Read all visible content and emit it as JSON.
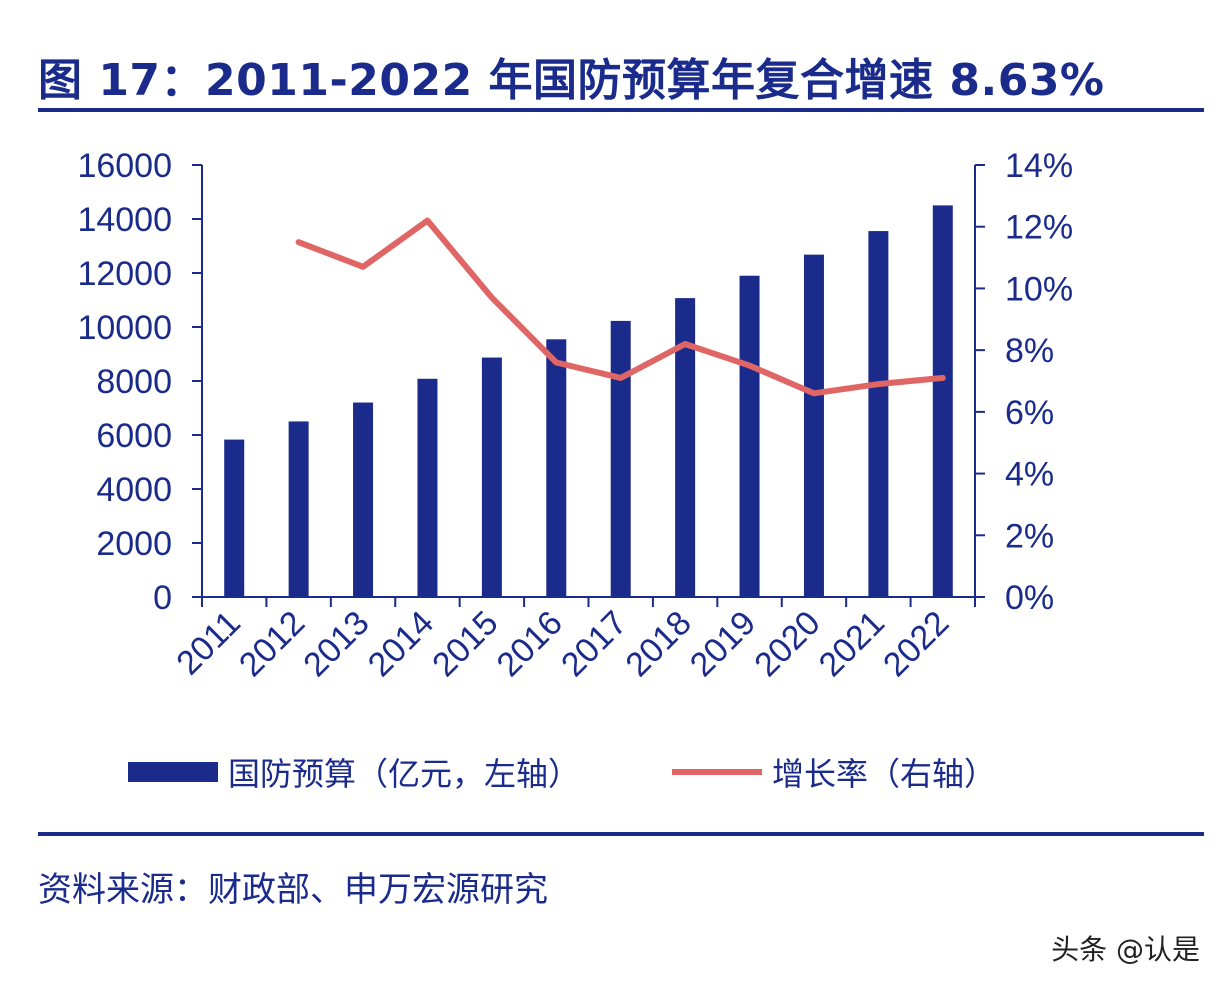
{
  "title": "图 17：2011-2022 年国防预算年复合增速 8.63%",
  "source": "资料来源：财政部、申万宏源研究",
  "watermark": "头条 @认是",
  "colors": {
    "primary": "#1a2b8c",
    "line": "#e06666"
  },
  "chart_data": {
    "type": "bar+line",
    "categories": [
      "2011",
      "2012",
      "2013",
      "2014",
      "2015",
      "2016",
      "2017",
      "2018",
      "2019",
      "2020",
      "2021",
      "2022"
    ],
    "series": [
      {
        "name": "国防预算（亿元，左轴）",
        "type": "bar",
        "axis": "left",
        "values": [
          5830,
          6503,
          7202,
          8082,
          8869,
          9544,
          10226,
          11070,
          11899,
          12680,
          13553,
          14504
        ]
      },
      {
        "name": "增长率（右轴）",
        "type": "line",
        "axis": "right",
        "start_index": 1,
        "values": [
          null,
          11.5,
          10.7,
          12.2,
          9.7,
          7.6,
          7.1,
          8.2,
          7.5,
          6.6,
          6.9,
          7.1
        ]
      }
    ],
    "left_axis": {
      "min": 0,
      "max": 16000,
      "ticks": [
        "0",
        "2000",
        "4000",
        "6000",
        "8000",
        "10000",
        "12000",
        "14000",
        "16000"
      ]
    },
    "right_axis": {
      "min": 0,
      "max": 14,
      "ticks": [
        "0%",
        "2%",
        "4%",
        "6%",
        "8%",
        "10%",
        "12%",
        "14%"
      ]
    },
    "legend_position": "bottom",
    "grid": false
  }
}
